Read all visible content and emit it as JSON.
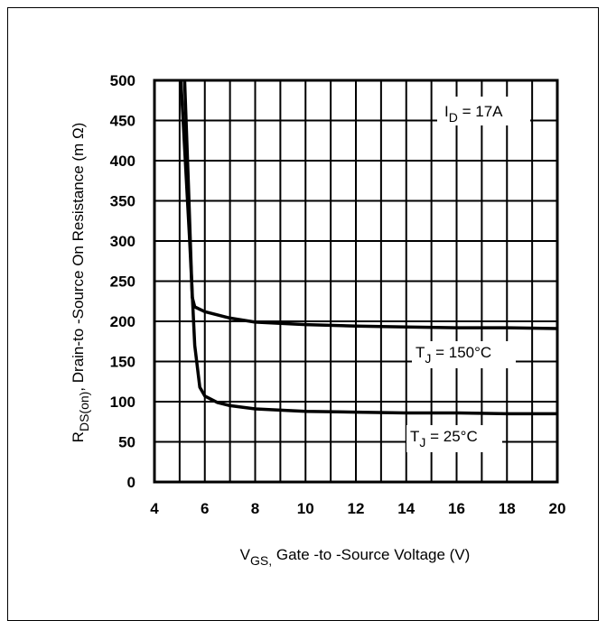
{
  "chart_data": {
    "type": "line",
    "xlabel": {
      "main": "V",
      "sub": "GS,",
      "rest": " Gate -to -Source Voltage  (V)"
    },
    "ylabel": {
      "main": "R",
      "sub": "DS(on)",
      "rest": ",  Drain-to -Source On Resistance (m Ω)"
    },
    "xlim": [
      4,
      20
    ],
    "ylim": [
      0,
      500
    ],
    "x_ticks": [
      "4",
      "6",
      "8",
      "10",
      "12",
      "14",
      "16",
      "18",
      "20"
    ],
    "y_ticks": [
      "0",
      "50",
      "100",
      "150",
      "200",
      "250",
      "300",
      "350",
      "400",
      "450",
      "500"
    ],
    "grid": true,
    "series": [
      {
        "name": {
          "main": "T",
          "sub": "J",
          "rest": " = 150°C"
        },
        "x": [
          5.2,
          5.35,
          5.5,
          5.6,
          6.0,
          7.0,
          8.0,
          10.0,
          12.0,
          14.0,
          16.0,
          18.0,
          20.0
        ],
        "y": [
          500,
          370,
          230,
          218,
          212,
          204,
          199,
          196,
          194,
          193,
          192,
          192,
          191
        ]
      },
      {
        "name": {
          "main": "T",
          "sub": "J",
          "rest": " = 25°C"
        },
        "x": [
          5.05,
          5.4,
          5.6,
          5.8,
          6.0,
          6.5,
          7.0,
          8.0,
          10.0,
          12.0,
          14.0,
          16.0,
          18.0,
          20.0
        ],
        "y": [
          500,
          300,
          170,
          118,
          107,
          99,
          95,
          91,
          88,
          87,
          86,
          86,
          85,
          85
        ]
      }
    ],
    "annotation": {
      "main": "I",
      "sub": "D",
      "rest": " = 17A"
    }
  }
}
